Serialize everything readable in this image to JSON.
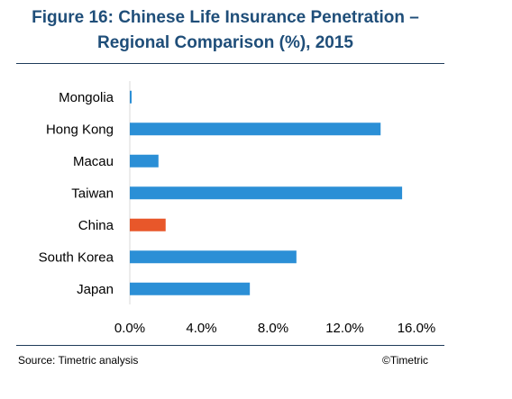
{
  "title_line1": "Figure 16: Chinese Life Insurance Penetration –",
  "title_line2": "Regional Comparison (%), 2015",
  "source": "Source: Timetric analysis",
  "copyright": "©Timetric",
  "colors": {
    "default_bar": "#2b8fd6",
    "highlight_bar": "#e8572a",
    "title": "#1f4e79"
  },
  "chart_data": {
    "type": "bar",
    "orientation": "horizontal",
    "title": "Figure 16: Chinese Life Insurance Penetration – Regional Comparison (%), 2015",
    "categories": [
      "Mongolia",
      "Hong Kong",
      "Macau",
      "Taiwan",
      "China",
      "South Korea",
      "Japan"
    ],
    "values": [
      0.1,
      14.0,
      1.6,
      15.2,
      2.0,
      9.3,
      6.7
    ],
    "highlight": "China",
    "xlim": [
      0,
      16
    ],
    "xticks": [
      "0.0%",
      "4.0%",
      "8.0%",
      "12.0%",
      "16.0%"
    ],
    "xlabel": "",
    "ylabel": "",
    "grid": false,
    "legend": "none"
  }
}
